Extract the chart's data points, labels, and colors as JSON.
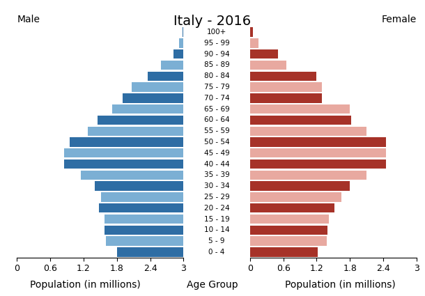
{
  "title": "Italy - 2016",
  "label_male": "Male",
  "label_female": "Female",
  "xlabel_left": "Population (in millions)",
  "xlabel_center": "Age Group",
  "xlabel_right": "Population (in millions)",
  "age_groups": [
    "0 - 4",
    "5 - 9",
    "10 - 14",
    "15 - 19",
    "20 - 24",
    "25 - 29",
    "30 - 34",
    "35 - 39",
    "40 - 44",
    "45 - 49",
    "50 - 54",
    "55 - 59",
    "60 - 64",
    "65 - 69",
    "70 - 74",
    "75 - 79",
    "80 - 84",
    "85 - 89",
    "90 - 94",
    "95 - 99",
    "100+"
  ],
  "male_values": [
    1.2,
    1.4,
    1.42,
    1.42,
    1.52,
    1.48,
    1.6,
    1.85,
    2.15,
    2.15,
    2.05,
    1.73,
    1.55,
    1.28,
    1.1,
    0.93,
    0.65,
    0.4,
    0.18,
    0.08,
    0.02
  ],
  "female_values": [
    1.22,
    1.38,
    1.4,
    1.42,
    1.52,
    1.65,
    1.8,
    2.1,
    2.45,
    2.45,
    2.45,
    2.1,
    1.82,
    1.8,
    1.3,
    1.3,
    1.2,
    0.65,
    0.5,
    0.15,
    0.05
  ],
  "male_colors": [
    "#2e6da4",
    "#7bafd4",
    "#2e6da4",
    "#7bafd4",
    "#2e6da4",
    "#7bafd4",
    "#2e6da4",
    "#7bafd4",
    "#2e6da4",
    "#7bafd4",
    "#2e6da4",
    "#7bafd4",
    "#2e6da4",
    "#7bafd4",
    "#2e6da4",
    "#7bafd4",
    "#2e6da4",
    "#7bafd4",
    "#2e6da4",
    "#7bafd4",
    "#2e6da4"
  ],
  "female_colors": [
    "#a63228",
    "#e8a9a0",
    "#a63228",
    "#e8a9a0",
    "#a63228",
    "#e8a9a0",
    "#a63228",
    "#e8a9a0",
    "#a63228",
    "#e8a9a0",
    "#a63228",
    "#e8a9a0",
    "#a63228",
    "#e8a9a0",
    "#a63228",
    "#e8a9a0",
    "#a63228",
    "#e8a9a0",
    "#a63228",
    "#e8a9a0",
    "#a63228"
  ],
  "xlim": 3.0,
  "xticks": [
    0,
    0.6,
    1.2,
    1.8,
    2.4,
    3.0
  ],
  "xtick_labels_left": [
    "3",
    "2.4",
    "1.8",
    "1.2",
    "0.6",
    "0"
  ],
  "xtick_labels_right": [
    "0",
    "0.6",
    "1.2",
    "1.8",
    "2.4",
    "3"
  ],
  "background_color": "#ffffff",
  "title_fontsize": 14,
  "label_fontsize": 10,
  "tick_fontsize": 9,
  "age_label_fontsize": 7.5,
  "bar_height": 0.85
}
